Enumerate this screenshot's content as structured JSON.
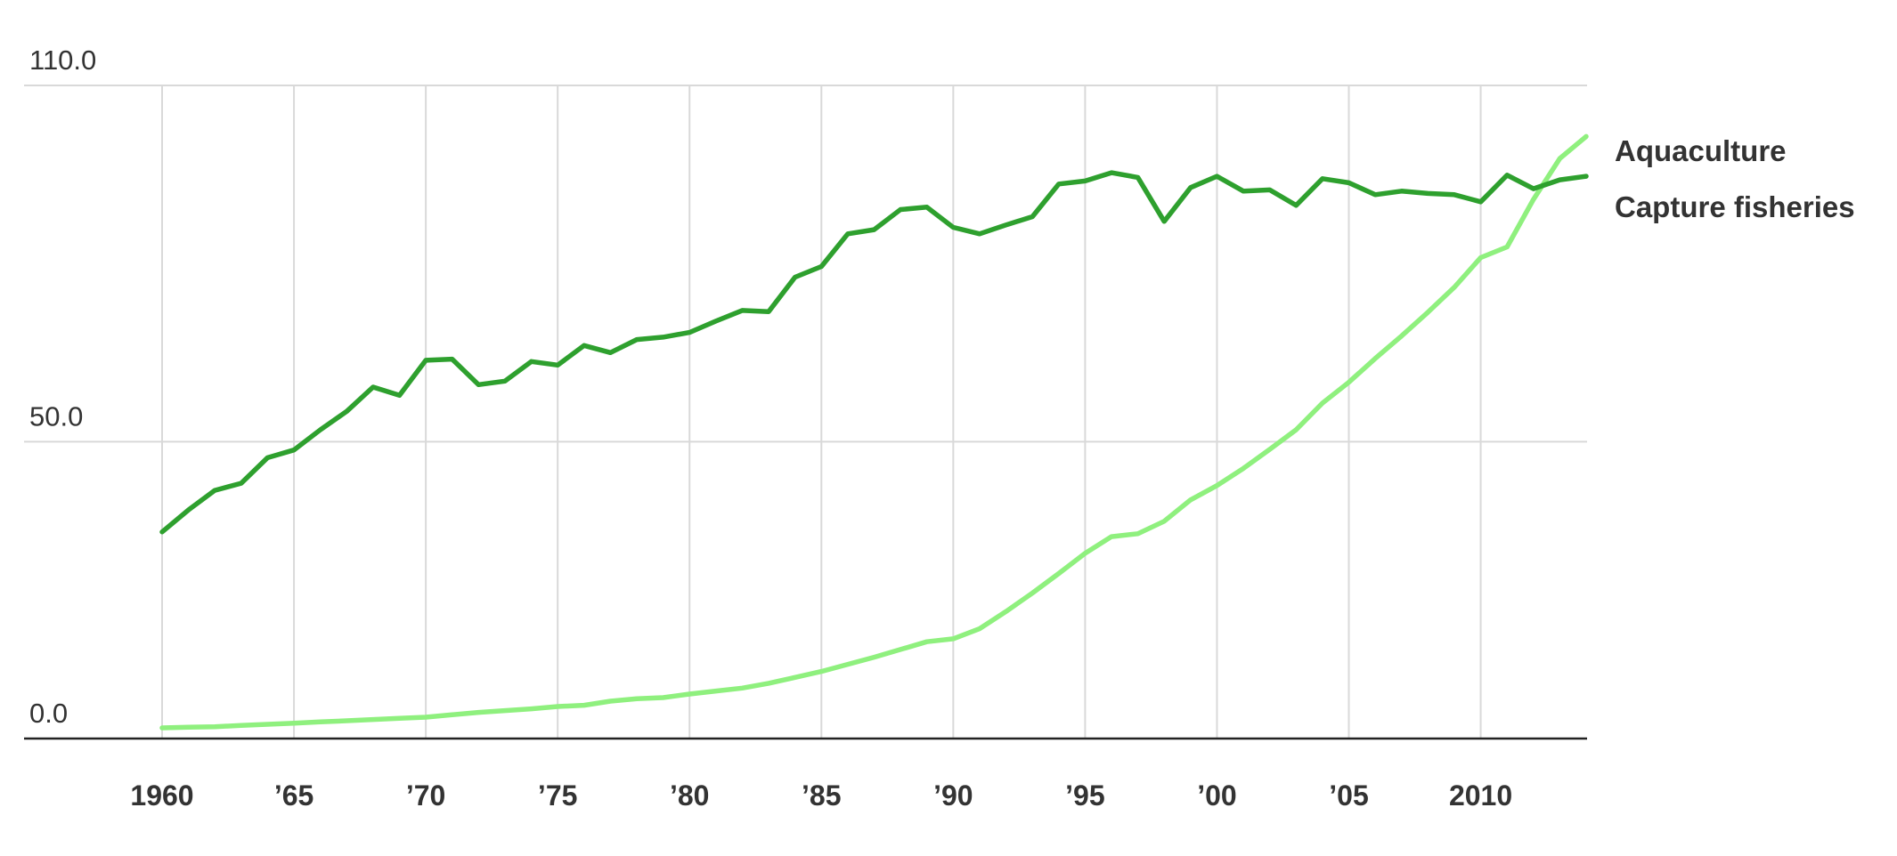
{
  "chart_data": {
    "type": "line",
    "x": [
      1960,
      1961,
      1962,
      1963,
      1964,
      1965,
      1966,
      1967,
      1968,
      1969,
      1970,
      1971,
      1972,
      1973,
      1974,
      1975,
      1976,
      1977,
      1978,
      1979,
      1980,
      1981,
      1982,
      1983,
      1984,
      1985,
      1986,
      1987,
      1988,
      1989,
      1990,
      1991,
      1992,
      1993,
      1994,
      1995,
      1996,
      1997,
      1998,
      1999,
      2000,
      2001,
      2002,
      2003,
      2004,
      2005,
      2006,
      2007,
      2008,
      2009,
      2010,
      2011,
      2012,
      2013,
      2014
    ],
    "series": [
      {
        "name": "Aquaculture",
        "color": "#8ff07e",
        "values": [
          1.8,
          1.9,
          2.0,
          2.2,
          2.4,
          2.6,
          2.8,
          3.0,
          3.2,
          3.4,
          3.6,
          4.0,
          4.4,
          4.7,
          5.0,
          5.4,
          5.6,
          6.3,
          6.7,
          6.9,
          7.5,
          8.0,
          8.5,
          9.3,
          10.3,
          11.3,
          12.5,
          13.7,
          15.0,
          16.3,
          16.8,
          18.5,
          21.4,
          24.5,
          27.8,
          31.2,
          34.0,
          34.5,
          36.6,
          40.2,
          42.6,
          45.5,
          48.7,
          52.0,
          56.5,
          60.0,
          64.0,
          67.8,
          71.8,
          76.0,
          81.0,
          82.8,
          90.8,
          97.7,
          101.4
        ]
      },
      {
        "name": "Capture fisheries",
        "color": "#2ea02e",
        "values": [
          34.8,
          38.5,
          41.8,
          43.0,
          47.3,
          48.6,
          52.0,
          55.1,
          59.2,
          57.8,
          63.7,
          63.9,
          59.6,
          60.2,
          63.5,
          62.9,
          66.2,
          65.0,
          67.2,
          67.6,
          68.4,
          70.3,
          72.1,
          71.9,
          77.7,
          79.5,
          85.0,
          85.7,
          89.1,
          89.5,
          86.1,
          85.0,
          86.5,
          87.9,
          93.4,
          93.9,
          95.3,
          94.5,
          87.1,
          92.8,
          94.7,
          92.2,
          92.4,
          89.8,
          94.3,
          93.6,
          91.6,
          92.2,
          91.8,
          91.6,
          90.4,
          94.9,
          92.6,
          94.1,
          94.7
        ]
      }
    ],
    "xlim": [
      1960,
      2014
    ],
    "ylim": [
      0,
      110
    ],
    "xticks": [
      1960,
      {
        "value": 1965,
        "label": "’65"
      },
      {
        "value": 1970,
        "label": "’70"
      },
      {
        "value": 1975,
        "label": "’75"
      },
      {
        "value": 1980,
        "label": "’80"
      },
      {
        "value": 1985,
        "label": "’85"
      },
      {
        "value": 1990,
        "label": "’90"
      },
      {
        "value": 1995,
        "label": "’95"
      },
      {
        "value": 2000,
        "label": "’00"
      },
      {
        "value": 2005,
        "label": "’05"
      },
      2010
    ],
    "yticks": [
      {
        "value": 0,
        "label": "0.0"
      },
      {
        "value": 50,
        "label": "50.0"
      },
      {
        "value": 110,
        "label": "110.0"
      }
    ],
    "grid": true
  }
}
